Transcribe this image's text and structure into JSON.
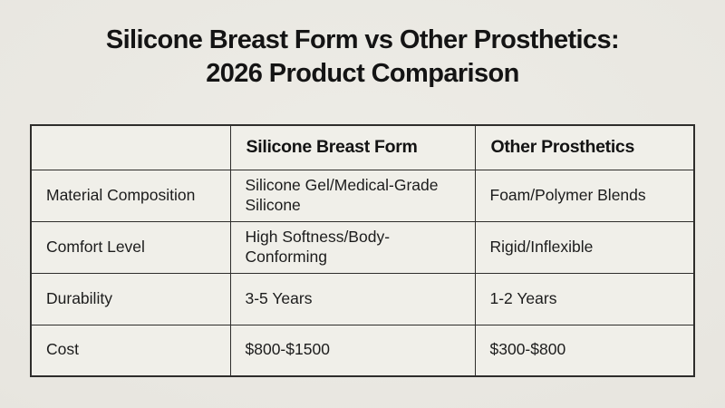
{
  "header": {
    "title_line1": "Silicone Breast Form vs Other Prosthetics:",
    "title_line2": "2026 Product Comparison"
  },
  "chart_data": {
    "type": "table",
    "title": "Silicone Breast Form vs Other Prosthetics: 2026 Product Comparison",
    "columns": [
      "",
      "Silicone Breast Form",
      "Other Prosthetics"
    ],
    "rows": [
      [
        "Material Composition",
        "Silicone Gel/Medical-Grade Silicone",
        "Foam/Polymer Blends"
      ],
      [
        "Comfort Level",
        "High Softness/Body-Conforming",
        "Rigid/Inflexible"
      ],
      [
        "Durability",
        "3-5 Years",
        "1-2 Years"
      ],
      [
        "Cost",
        "$800-$1500",
        "$300-$800"
      ]
    ],
    "layout": {
      "legend": "none",
      "grid": "table-borders",
      "header_row_bold": true
    }
  },
  "colors": {
    "page_background": "#e8e6e0",
    "cell_background": "#f0efe9",
    "border": "#2e2d2b",
    "text": "#141414"
  }
}
